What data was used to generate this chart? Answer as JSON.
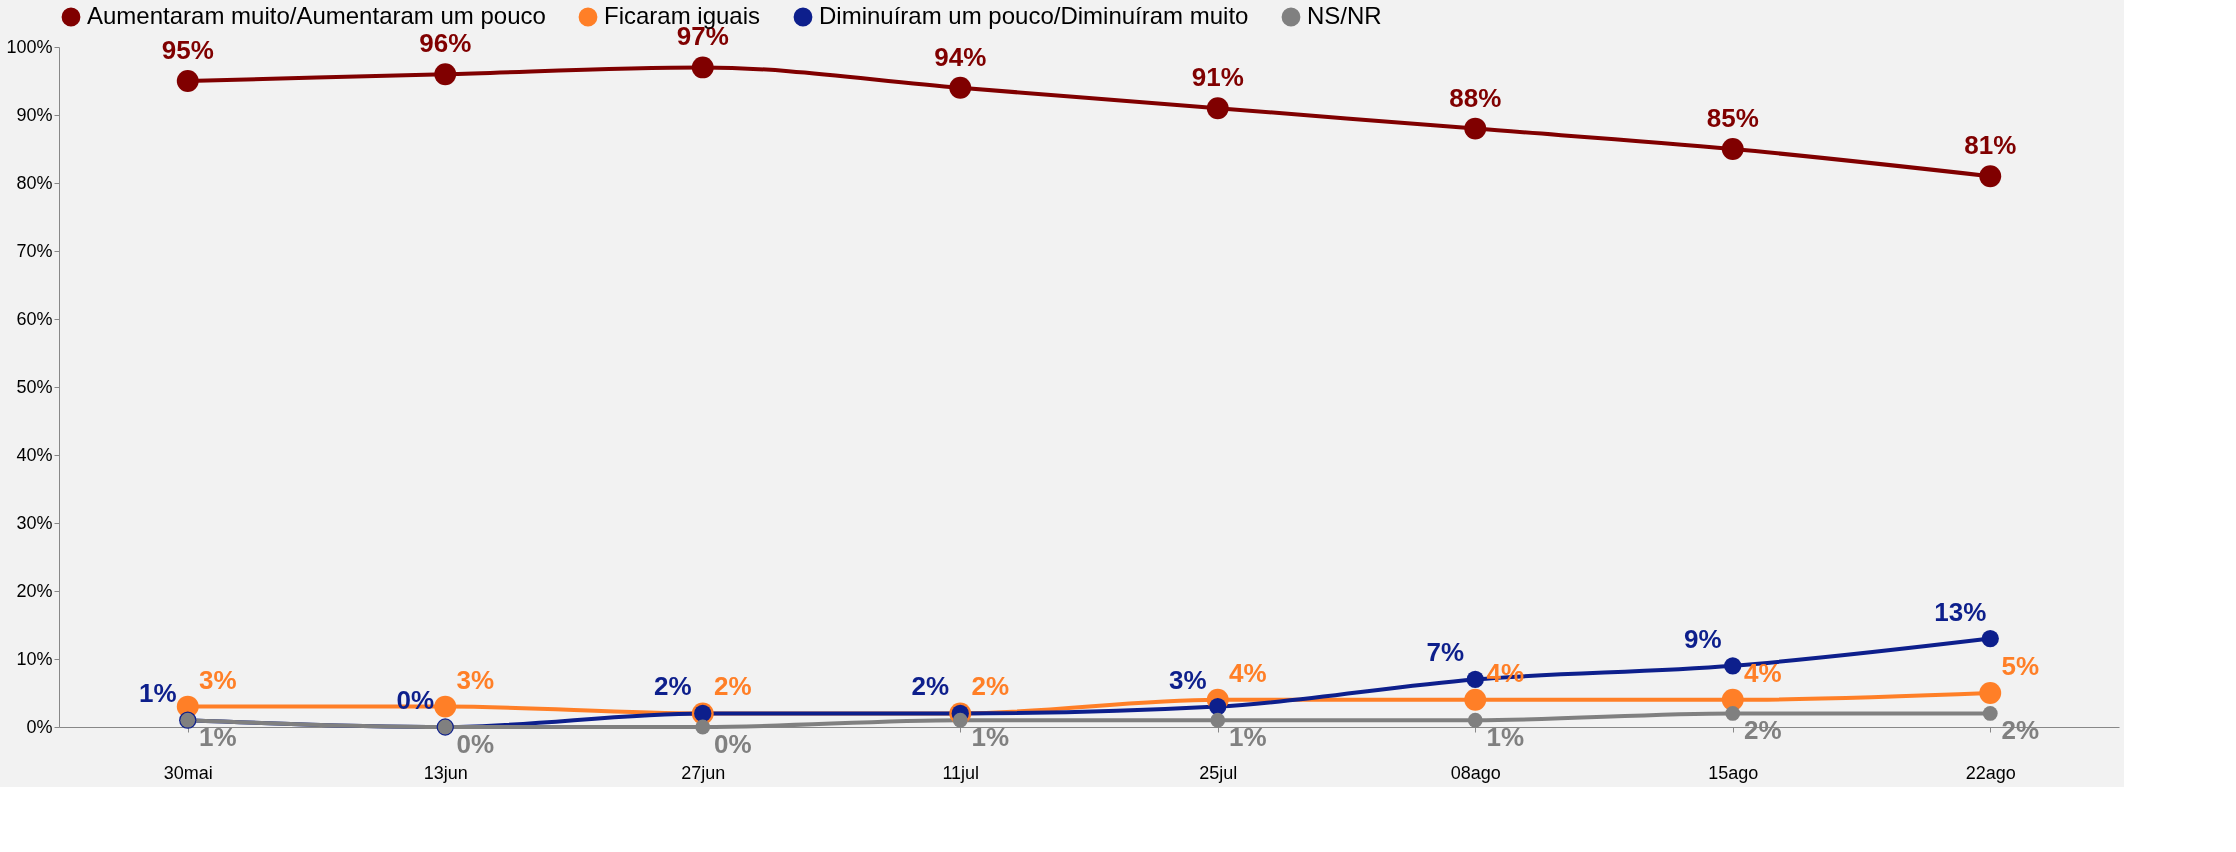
{
  "chart_data": {
    "type": "line",
    "categories": [
      "30mai",
      "13jun",
      "27jun",
      "11jul",
      "25jul",
      "08ago",
      "15ago",
      "22ago"
    ],
    "series": [
      {
        "name": "Aumentaram muito/Aumentaram um pouco",
        "color": "#800000",
        "values": [
          95,
          96,
          97,
          94,
          91,
          88,
          85,
          81
        ],
        "value_labels": [
          "95%",
          "96%",
          "97%",
          "94%",
          "91%",
          "88%",
          "85%",
          "81%"
        ]
      },
      {
        "name": "Ficaram iguais",
        "color": "#ff7f27",
        "values": [
          3,
          3,
          2,
          2,
          4,
          4,
          4,
          5
        ],
        "value_labels": [
          "3%",
          "3%",
          "2%",
          "2%",
          "4%",
          "4%",
          "4%",
          "5%"
        ]
      },
      {
        "name": "Diminuíram um pouco/Diminuíram muito",
        "color": "#0d1f8c",
        "values": [
          1,
          0,
          2,
          2,
          3,
          7,
          9,
          13
        ],
        "value_labels": [
          "1%",
          "0%",
          "2%",
          "2%",
          "3%",
          "7%",
          "9%",
          "13%"
        ]
      },
      {
        "name": "NS/NR",
        "color": "#808080",
        "values": [
          1,
          0,
          0,
          1,
          1,
          1,
          2,
          2
        ],
        "value_labels": [
          "1%",
          "0%",
          "0%",
          "1%",
          "1%",
          "1%",
          "2%",
          "2%"
        ]
      }
    ],
    "ylim": [
      0,
      100
    ],
    "yticks": [
      {
        "value": 0,
        "label": "0%"
      },
      {
        "value": 10,
        "label": "10%"
      },
      {
        "value": 20,
        "label": "20%"
      },
      {
        "value": 30,
        "label": "30%"
      },
      {
        "value": 40,
        "label": "40%"
      },
      {
        "value": 50,
        "label": "50%"
      },
      {
        "value": 60,
        "label": "60%"
      },
      {
        "value": 70,
        "label": "70%"
      },
      {
        "value": 80,
        "label": "80%"
      },
      {
        "value": 90,
        "label": "90%"
      },
      {
        "value": 100,
        "label": "100%"
      }
    ],
    "grid": false,
    "legend": "top",
    "marker": "circle",
    "line_style": "solid"
  }
}
